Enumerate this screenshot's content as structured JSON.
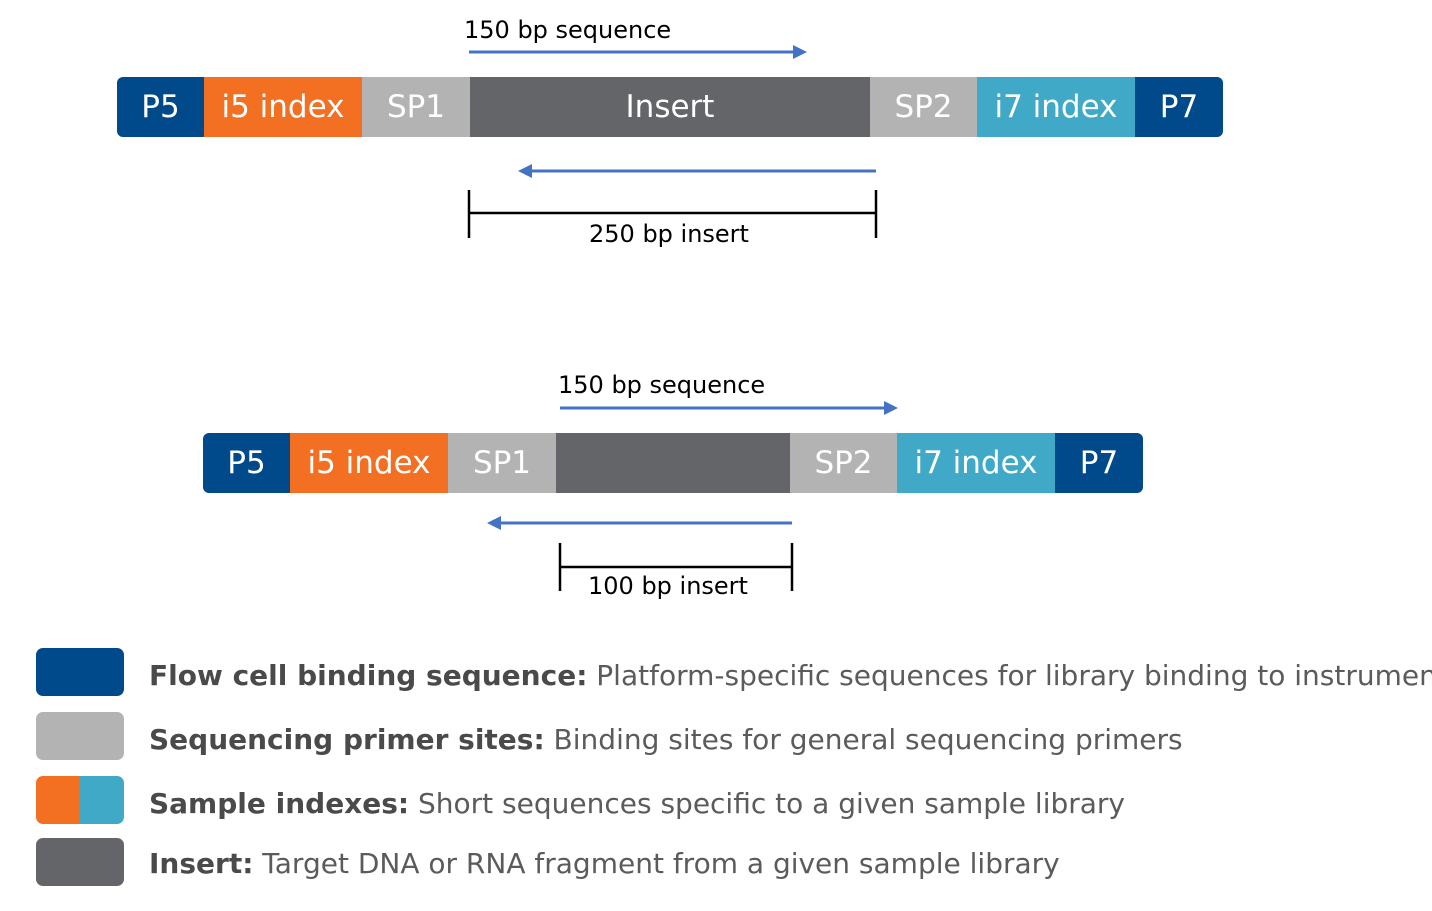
{
  "colors": {
    "flow_cell": "#004a8c",
    "index_i5": "#f36f21",
    "index_i7": "#40a9c8",
    "primer": "#b3b3b3",
    "insert": "#636569",
    "arrow": "#4472c4"
  },
  "diagram_top": {
    "read_label": "150 bp sequence",
    "insert_label": "250 bp insert",
    "segments": [
      {
        "label": "P5",
        "type": "flow_cell"
      },
      {
        "label": "i5 index",
        "type": "index_i5"
      },
      {
        "label": "SP1",
        "type": "primer"
      },
      {
        "label": "Insert",
        "type": "insert"
      },
      {
        "label": "SP2",
        "type": "primer"
      },
      {
        "label": "i7 index",
        "type": "index_i7"
      },
      {
        "label": "P7",
        "type": "flow_cell"
      }
    ]
  },
  "diagram_bottom": {
    "read_label": "150 bp sequence",
    "insert_label": "100 bp insert",
    "segments": [
      {
        "label": "P5",
        "type": "flow_cell"
      },
      {
        "label": "i5 index",
        "type": "index_i5"
      },
      {
        "label": "SP1",
        "type": "primer"
      },
      {
        "label": "",
        "type": "insert"
      },
      {
        "label": "SP2",
        "type": "primer"
      },
      {
        "label": "i7 index",
        "type": "index_i7"
      },
      {
        "label": "P7",
        "type": "flow_cell"
      }
    ]
  },
  "legend": [
    {
      "term": "Flow cell binding sequence:",
      "description": " Platform-specific sequences for library binding to instrument"
    },
    {
      "term": "Sequencing primer sites:",
      "description": " Binding sites for general sequencing primers"
    },
    {
      "term": "Sample indexes:",
      "description": " Short sequences specific to a given sample library"
    },
    {
      "term": "Insert:",
      "description": " Target DNA or RNA fragment from a given sample library"
    }
  ]
}
